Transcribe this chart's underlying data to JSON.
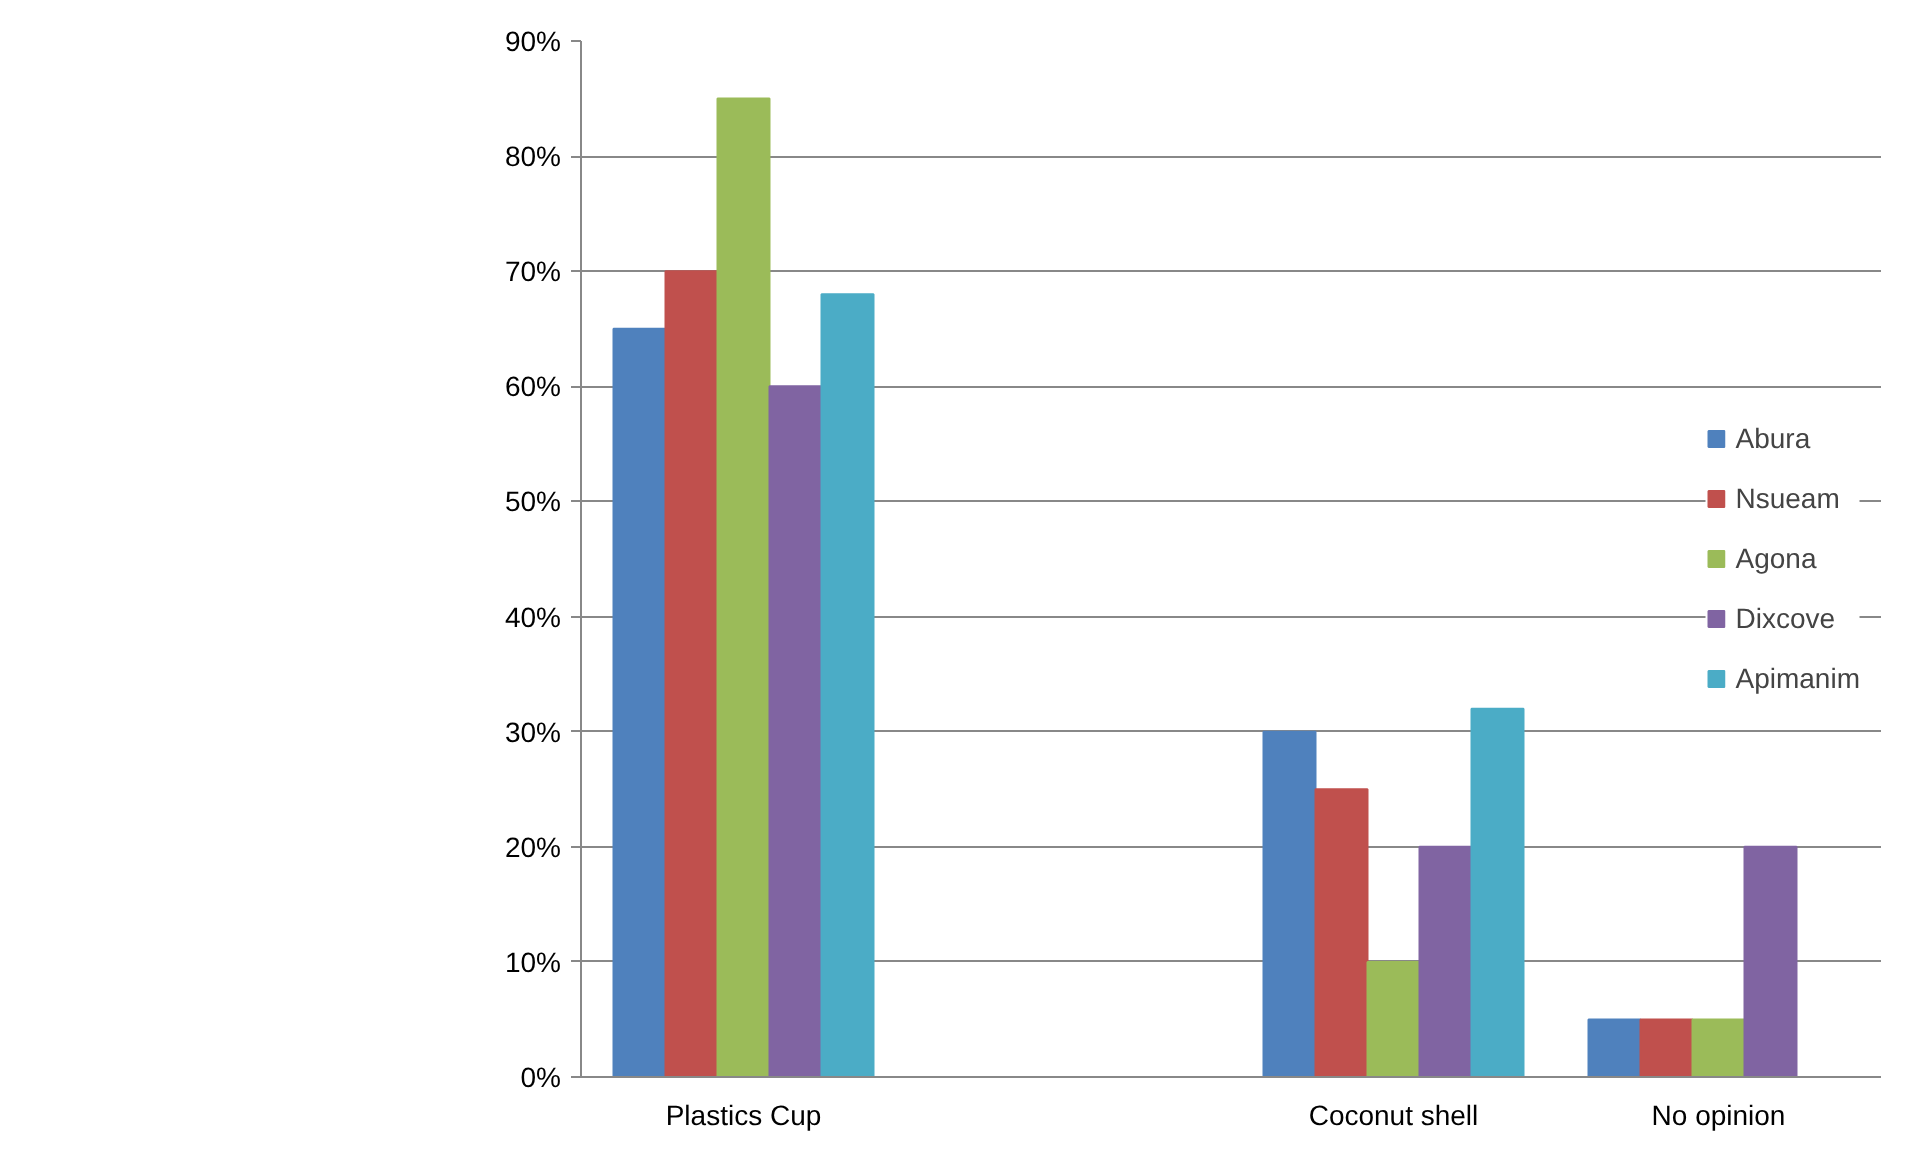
{
  "chart_data": {
    "type": "bar",
    "categories": [
      "Plastics Cup",
      null,
      "Coconut shell",
      "No opinion"
    ],
    "series": [
      {
        "name": "Abura",
        "color": "#4f81bd",
        "values": [
          65,
          null,
          30,
          5
        ]
      },
      {
        "name": "Nsueam",
        "color": "#c0504d",
        "values": [
          70,
          null,
          25,
          5
        ]
      },
      {
        "name": "Agona",
        "color": "#9bbb59",
        "values": [
          85,
          null,
          10,
          5
        ]
      },
      {
        "name": "Dixcove",
        "color": "#8064a2",
        "values": [
          60,
          null,
          20,
          20
        ]
      },
      {
        "name": "Apimanim",
        "color": "#4bacc6",
        "values": [
          68,
          null,
          32,
          null
        ]
      }
    ],
    "ylim": [
      0,
      90
    ],
    "yticks": [
      {
        "value": 0,
        "label": "0%"
      },
      {
        "value": 10,
        "label": "10%"
      },
      {
        "value": 20,
        "label": "20%"
      },
      {
        "value": 30,
        "label": "30%"
      },
      {
        "value": 40,
        "label": "40%"
      },
      {
        "value": 50,
        "label": "50%"
      },
      {
        "value": 60,
        "label": "60%"
      },
      {
        "value": 70,
        "label": "70%"
      },
      {
        "value": 80,
        "label": "80%"
      },
      {
        "value": 90,
        "label": "90%"
      }
    ],
    "grid": "y",
    "legend": "right"
  }
}
